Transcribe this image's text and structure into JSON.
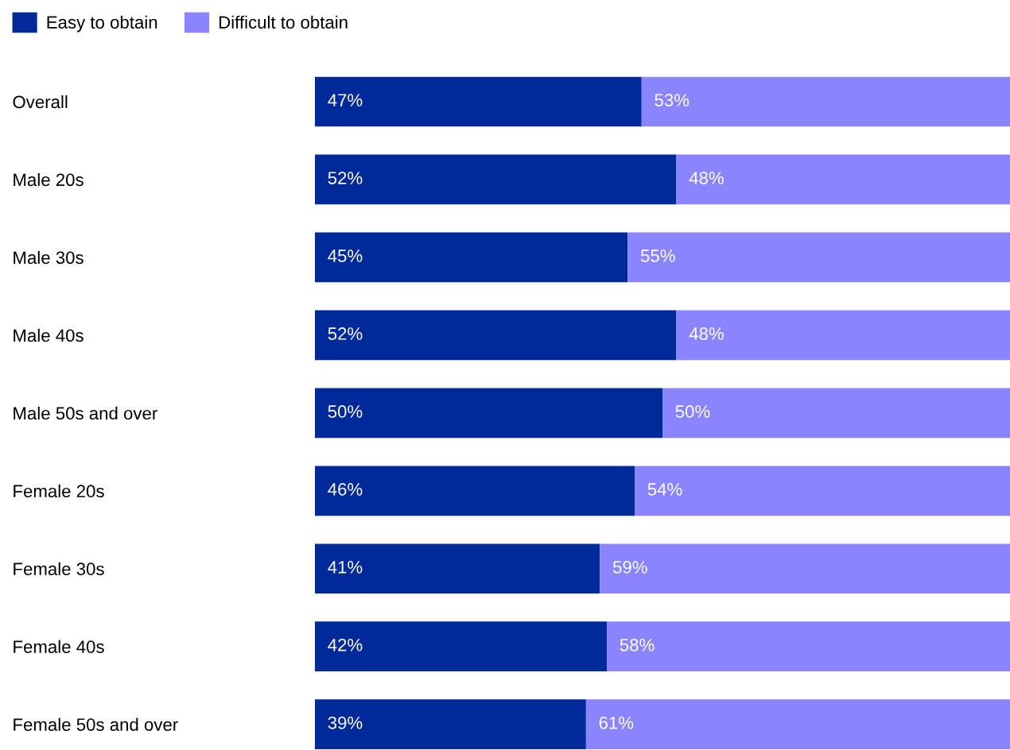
{
  "chart_data": {
    "type": "bar",
    "orientation": "horizontal",
    "stacked": true,
    "categories": [
      "Overall",
      "Male 20s",
      "Male 30s",
      "Male 40s",
      "Male 50s and over",
      "Female 20s",
      "Female 30s",
      "Female 40s",
      "Female 50s and over"
    ],
    "series": [
      {
        "name": "Easy to obtain",
        "color": "#002a9a",
        "values": [
          47,
          52,
          45,
          52,
          50,
          46,
          41,
          42,
          39
        ],
        "value_labels": [
          "47%",
          "52%",
          "45%",
          "52%",
          "50%",
          "46%",
          "41%",
          "42%",
          "39%"
        ]
      },
      {
        "name": "Difficult to obtain",
        "color": "#8a85ff",
        "values": [
          53,
          48,
          55,
          48,
          50,
          54,
          59,
          58,
          61
        ],
        "value_labels": [
          "53%",
          "48%",
          "55%",
          "48%",
          "50%",
          "54%",
          "59%",
          "58%",
          "61%"
        ]
      }
    ],
    "tick_labels": "y",
    "legend": "top left",
    "grid": false
  }
}
